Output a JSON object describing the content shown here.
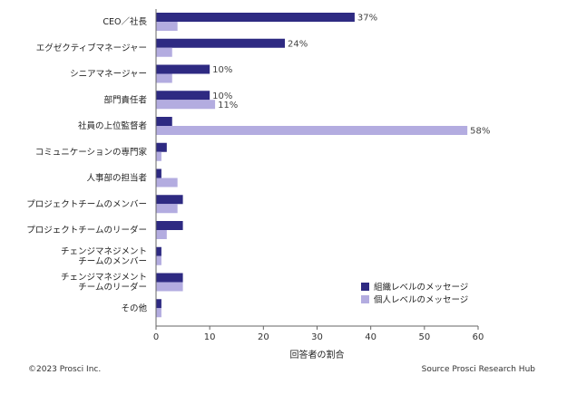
{
  "chart_data": {
    "type": "bar",
    "orientation": "horizontal",
    "categories": [
      [
        "CEO／社長"
      ],
      [
        "エグゼクティブマネージャー"
      ],
      [
        "シニアマネージャー"
      ],
      [
        "部門責任者"
      ],
      [
        "社員の上位監督者"
      ],
      [
        "コミュニケーションの専門家"
      ],
      [
        "人事部の担当者"
      ],
      [
        "プロジェクトチームのメンバー"
      ],
      [
        "プロジェクトチームのリーダー"
      ],
      [
        "チェンジマネジメント",
        "チームのメンバー"
      ],
      [
        "チェンジマネジメント",
        "チームのリーダー"
      ],
      [
        "その他"
      ]
    ],
    "series": [
      {
        "name": "組織レベルのメッセージ",
        "color": "#2e2a82",
        "values": [
          37,
          24,
          10,
          10,
          3,
          2,
          1,
          5,
          5,
          1,
          5,
          1
        ],
        "labels": [
          "37%",
          "24%",
          "10%",
          "10%",
          "",
          "",
          "",
          "",
          "",
          "",
          "",
          ""
        ]
      },
      {
        "name": "個人レベルのメッセージ",
        "color": "#b3ace0",
        "values": [
          4,
          3,
          3,
          11,
          58,
          1,
          4,
          4,
          2,
          1,
          5,
          1
        ],
        "labels": [
          "",
          "",
          "",
          "11%",
          "58%",
          "",
          "",
          "",
          "",
          "",
          "",
          ""
        ]
      }
    ],
    "xlabel": "回答者の割合",
    "xlim": [
      0,
      60
    ],
    "xticks": [
      "0",
      "10",
      "20",
      "30",
      "40",
      "50",
      "60"
    ],
    "grid": false,
    "legend_position": "bottom-right"
  },
  "footer": {
    "copyright": "©2023 Prosci Inc.",
    "source": "Source Prosci Research Hub"
  }
}
